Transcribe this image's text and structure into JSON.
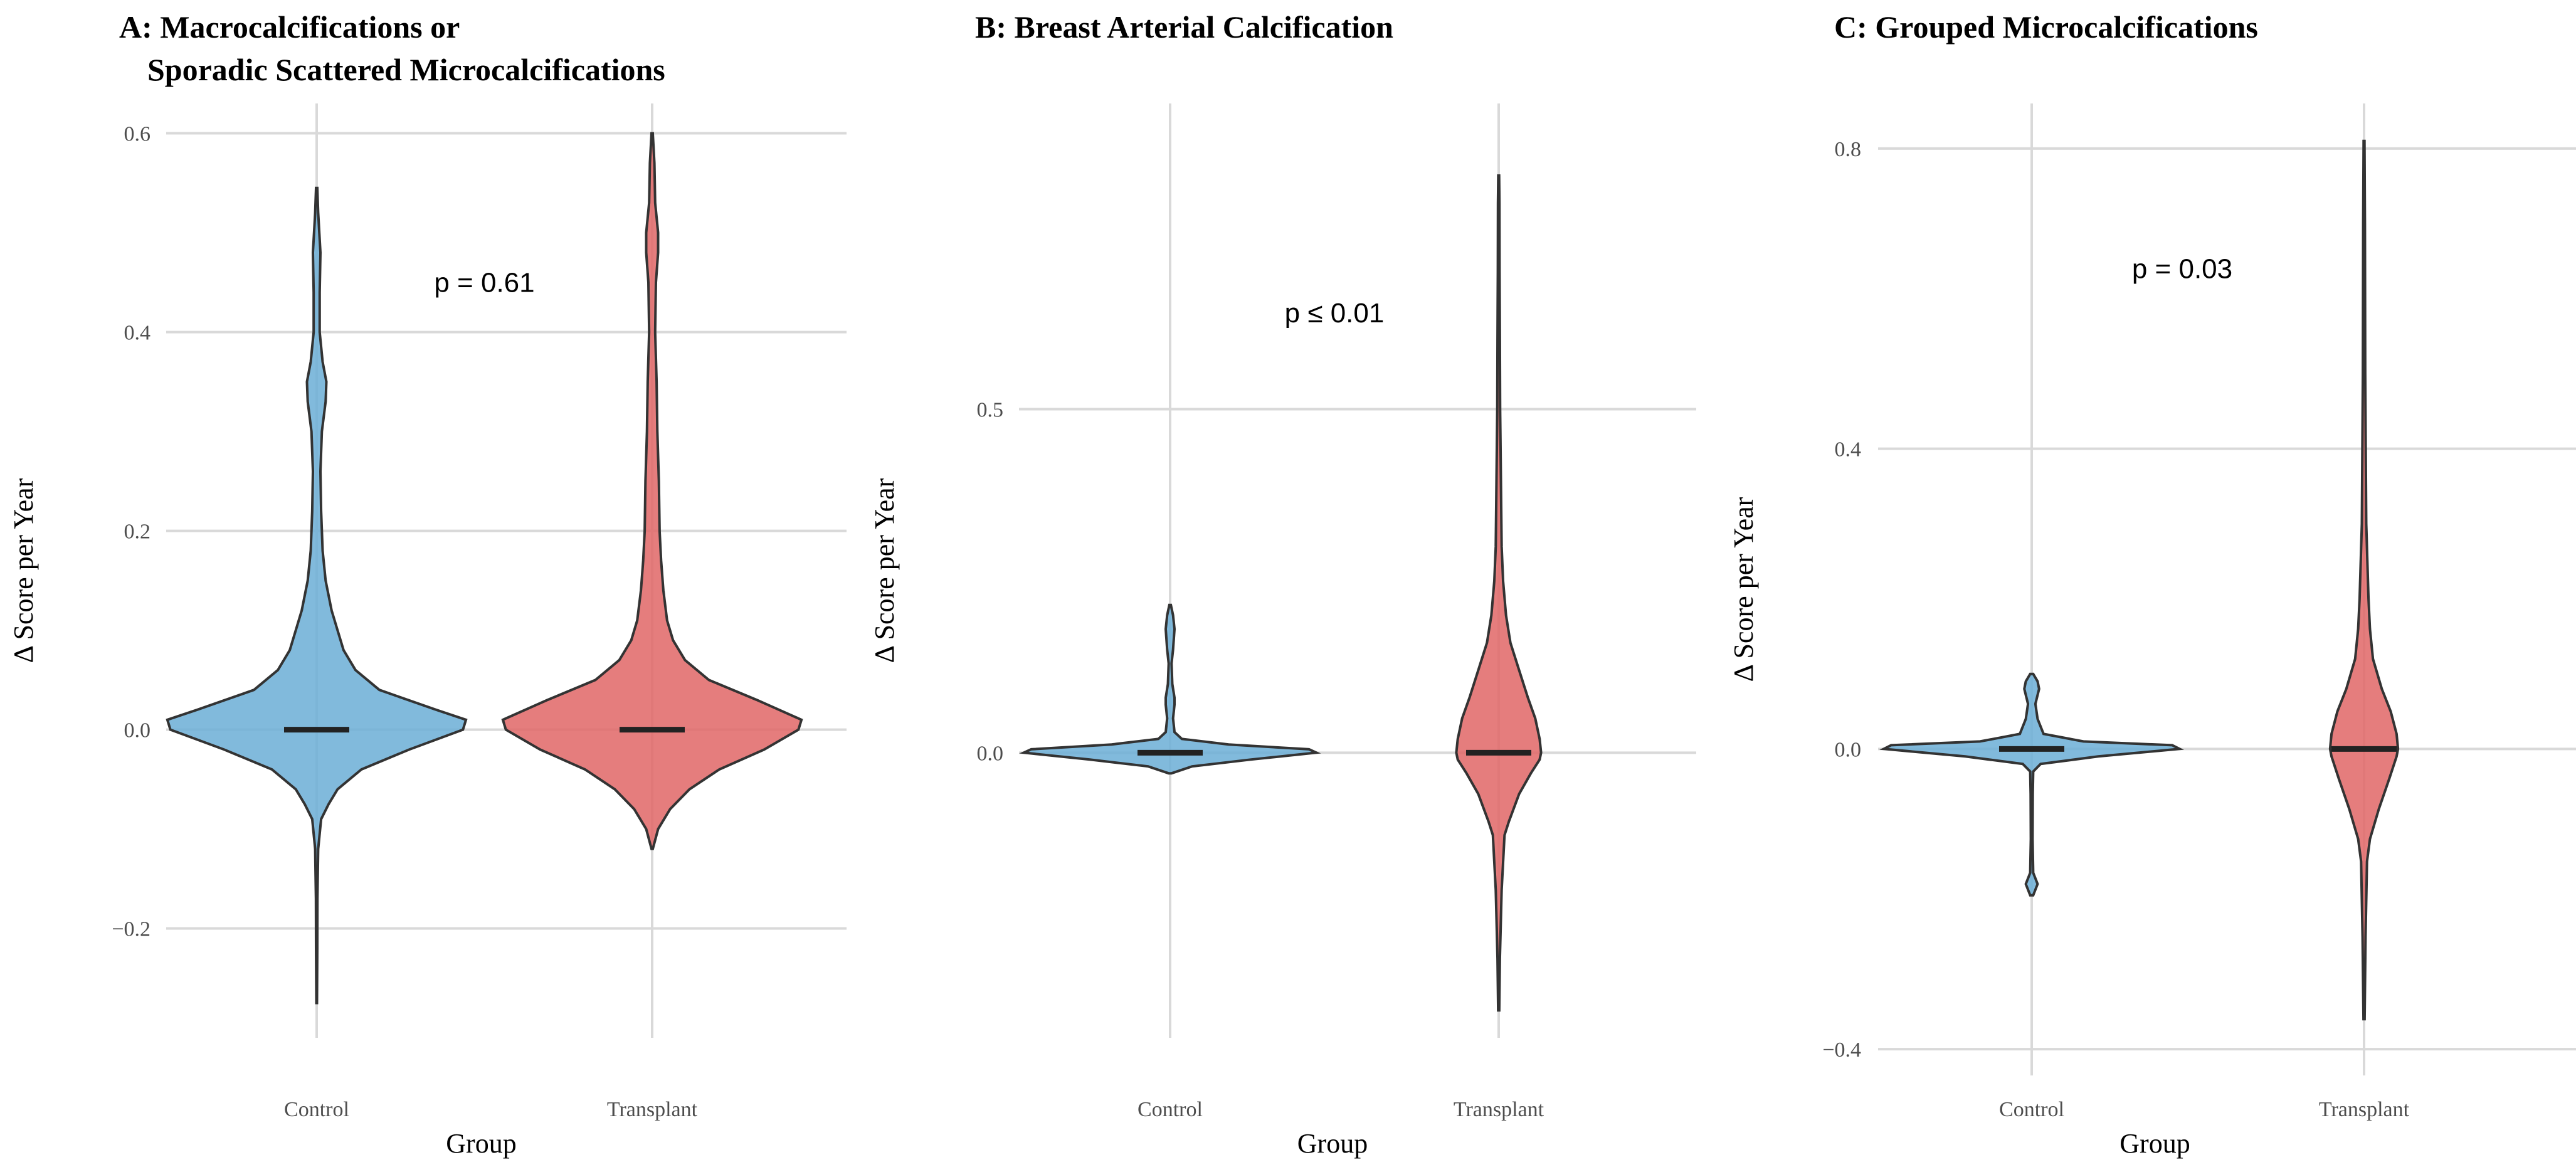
{
  "colors": {
    "Control": "#6baed6",
    "Transplant": "#e06666"
  },
  "chart_data": [
    {
      "type": "violin",
      "title_lines": [
        "A: Macrocalcifications or",
        "Sporadic Scattered Microcalcifications"
      ],
      "xlabel": "Group",
      "ylabel": "Δ Score per Year",
      "categories": [
        "Control",
        "Transplant"
      ],
      "ylim": [
        -0.31,
        0.63
      ],
      "yticks": [
        -0.2,
        0.0,
        0.2,
        0.4,
        0.6
      ],
      "ytick_labels": [
        "−0.2",
        "0.0",
        "0.2",
        "0.4",
        "0.6"
      ],
      "annotation": "p = 0.61",
      "annotation_pos": [
        1.5,
        0.45
      ],
      "maxwidth": 0.89,
      "series": [
        {
          "name": "Control",
          "median": 0.0,
          "profile": [
            [
              -0.275,
              0.002
            ],
            [
              -0.22,
              0.004
            ],
            [
              -0.17,
              0.005
            ],
            [
              -0.12,
              0.01
            ],
            [
              -0.09,
              0.03
            ],
            [
              -0.075,
              0.08
            ],
            [
              -0.06,
              0.14
            ],
            [
              -0.04,
              0.3
            ],
            [
              -0.02,
              0.62
            ],
            [
              0.0,
              0.98
            ],
            [
              0.01,
              1.0
            ],
            [
              0.02,
              0.8
            ],
            [
              0.04,
              0.42
            ],
            [
              0.06,
              0.26
            ],
            [
              0.08,
              0.18
            ],
            [
              0.1,
              0.14
            ],
            [
              0.12,
              0.1
            ],
            [
              0.15,
              0.06
            ],
            [
              0.18,
              0.04
            ],
            [
              0.22,
              0.03
            ],
            [
              0.26,
              0.025
            ],
            [
              0.3,
              0.035
            ],
            [
              0.33,
              0.06
            ],
            [
              0.35,
              0.065
            ],
            [
              0.37,
              0.04
            ],
            [
              0.4,
              0.02
            ],
            [
              0.44,
              0.02
            ],
            [
              0.48,
              0.025
            ],
            [
              0.52,
              0.01
            ],
            [
              0.545,
              0.004
            ]
          ]
        },
        {
          "name": "Transplant",
          "median": 0.0,
          "profile": [
            [
              -0.12,
              0.004
            ],
            [
              -0.1,
              0.04
            ],
            [
              -0.08,
              0.12
            ],
            [
              -0.06,
              0.25
            ],
            [
              -0.04,
              0.45
            ],
            [
              -0.02,
              0.75
            ],
            [
              0.0,
              0.98
            ],
            [
              0.01,
              1.0
            ],
            [
              0.03,
              0.7
            ],
            [
              0.05,
              0.38
            ],
            [
              0.07,
              0.22
            ],
            [
              0.09,
              0.14
            ],
            [
              0.11,
              0.1
            ],
            [
              0.14,
              0.075
            ],
            [
              0.17,
              0.06
            ],
            [
              0.2,
              0.05
            ],
            [
              0.25,
              0.045
            ],
            [
              0.3,
              0.035
            ],
            [
              0.35,
              0.03
            ],
            [
              0.4,
              0.02
            ],
            [
              0.45,
              0.025
            ],
            [
              0.48,
              0.04
            ],
            [
              0.5,
              0.04
            ],
            [
              0.53,
              0.02
            ],
            [
              0.57,
              0.015
            ],
            [
              0.6,
              0.004
            ]
          ]
        }
      ]
    },
    {
      "type": "violin",
      "title_lines": [
        "B: Breast Arterial Calcification"
      ],
      "xlabel": "Group",
      "ylabel": "Δ Score per Year",
      "categories": [
        "Control",
        "Transplant"
      ],
      "ylim": [
        -0.415,
        0.945
      ],
      "yticks": [
        0.0,
        0.5
      ],
      "ytick_labels": [
        "0.0",
        "0.5"
      ],
      "annotation": "p ≤ 0.01",
      "annotation_pos": [
        1.5,
        0.64
      ],
      "maxwidth": 0.89,
      "series": [
        {
          "name": "Control",
          "median": 0.0,
          "profile": [
            [
              -0.03,
              0.01
            ],
            [
              -0.02,
              0.15
            ],
            [
              -0.01,
              0.55
            ],
            [
              0.0,
              1.0
            ],
            [
              0.005,
              0.95
            ],
            [
              0.012,
              0.4
            ],
            [
              0.02,
              0.08
            ],
            [
              0.03,
              0.03
            ],
            [
              0.05,
              0.02
            ],
            [
              0.07,
              0.03
            ],
            [
              0.08,
              0.03
            ],
            [
              0.1,
              0.015
            ],
            [
              0.13,
              0.01
            ],
            [
              0.15,
              0.02
            ],
            [
              0.18,
              0.03
            ],
            [
              0.2,
              0.02
            ],
            [
              0.215,
              0.005
            ]
          ]
        },
        {
          "name": "Transplant",
          "median": 0.0,
          "profile": [
            [
              -0.375,
              0.004
            ],
            [
              -0.3,
              0.008
            ],
            [
              -0.2,
              0.02
            ],
            [
              -0.12,
              0.04
            ],
            [
              -0.1,
              0.07
            ],
            [
              -0.06,
              0.14
            ],
            [
              -0.03,
              0.22
            ],
            [
              -0.01,
              0.28
            ],
            [
              0.0,
              0.29
            ],
            [
              0.02,
              0.28
            ],
            [
              0.05,
              0.25
            ],
            [
              0.08,
              0.2
            ],
            [
              0.12,
              0.14
            ],
            [
              0.16,
              0.08
            ],
            [
              0.2,
              0.05
            ],
            [
              0.25,
              0.03
            ],
            [
              0.3,
              0.02
            ],
            [
              0.4,
              0.015
            ],
            [
              0.5,
              0.01
            ],
            [
              0.6,
              0.008
            ],
            [
              0.7,
              0.006
            ],
            [
              0.8,
              0.005
            ],
            [
              0.84,
              0.003
            ]
          ]
        }
      ]
    },
    {
      "type": "violin",
      "title_lines": [
        "C: Grouped Microcalcifications"
      ],
      "xlabel": "Group",
      "ylabel": "Δ Score per Year",
      "categories": [
        "Control",
        "Transplant"
      ],
      "ylim": [
        -0.435,
        0.86
      ],
      "yticks": [
        -0.4,
        0.0,
        0.4,
        0.8
      ],
      "ytick_labels": [
        "−0.4",
        "0.0",
        "0.4",
        "0.8"
      ],
      "annotation": "p = 0.03",
      "annotation_pos": [
        1.5,
        0.64
      ],
      "maxwidth": 0.89,
      "series": [
        {
          "name": "Control",
          "median": 0.0,
          "profile": [
            [
              -0.195,
              0.01
            ],
            [
              -0.18,
              0.04
            ],
            [
              -0.165,
              0.01
            ],
            [
              -0.12,
              0.006
            ],
            [
              -0.06,
              0.007
            ],
            [
              -0.03,
              0.01
            ],
            [
              -0.02,
              0.06
            ],
            [
              -0.01,
              0.45
            ],
            [
              0.0,
              1.0
            ],
            [
              0.005,
              0.95
            ],
            [
              0.01,
              0.35
            ],
            [
              0.02,
              0.08
            ],
            [
              0.04,
              0.04
            ],
            [
              0.06,
              0.025
            ],
            [
              0.08,
              0.05
            ],
            [
              0.09,
              0.04
            ],
            [
              0.1,
              0.01
            ]
          ]
        },
        {
          "name": "Transplant",
          "median": 0.0,
          "profile": [
            [
              -0.36,
              0.004
            ],
            [
              -0.25,
              0.01
            ],
            [
              -0.15,
              0.02
            ],
            [
              -0.12,
              0.04
            ],
            [
              -0.08,
              0.1
            ],
            [
              -0.04,
              0.17
            ],
            [
              -0.01,
              0.22
            ],
            [
              0.0,
              0.23
            ],
            [
              0.02,
              0.22
            ],
            [
              0.05,
              0.18
            ],
            [
              0.08,
              0.12
            ],
            [
              0.12,
              0.06
            ],
            [
              0.16,
              0.04
            ],
            [
              0.2,
              0.03
            ],
            [
              0.3,
              0.015
            ],
            [
              0.5,
              0.008
            ],
            [
              0.7,
              0.006
            ],
            [
              0.81,
              0.003
            ]
          ]
        }
      ]
    }
  ]
}
